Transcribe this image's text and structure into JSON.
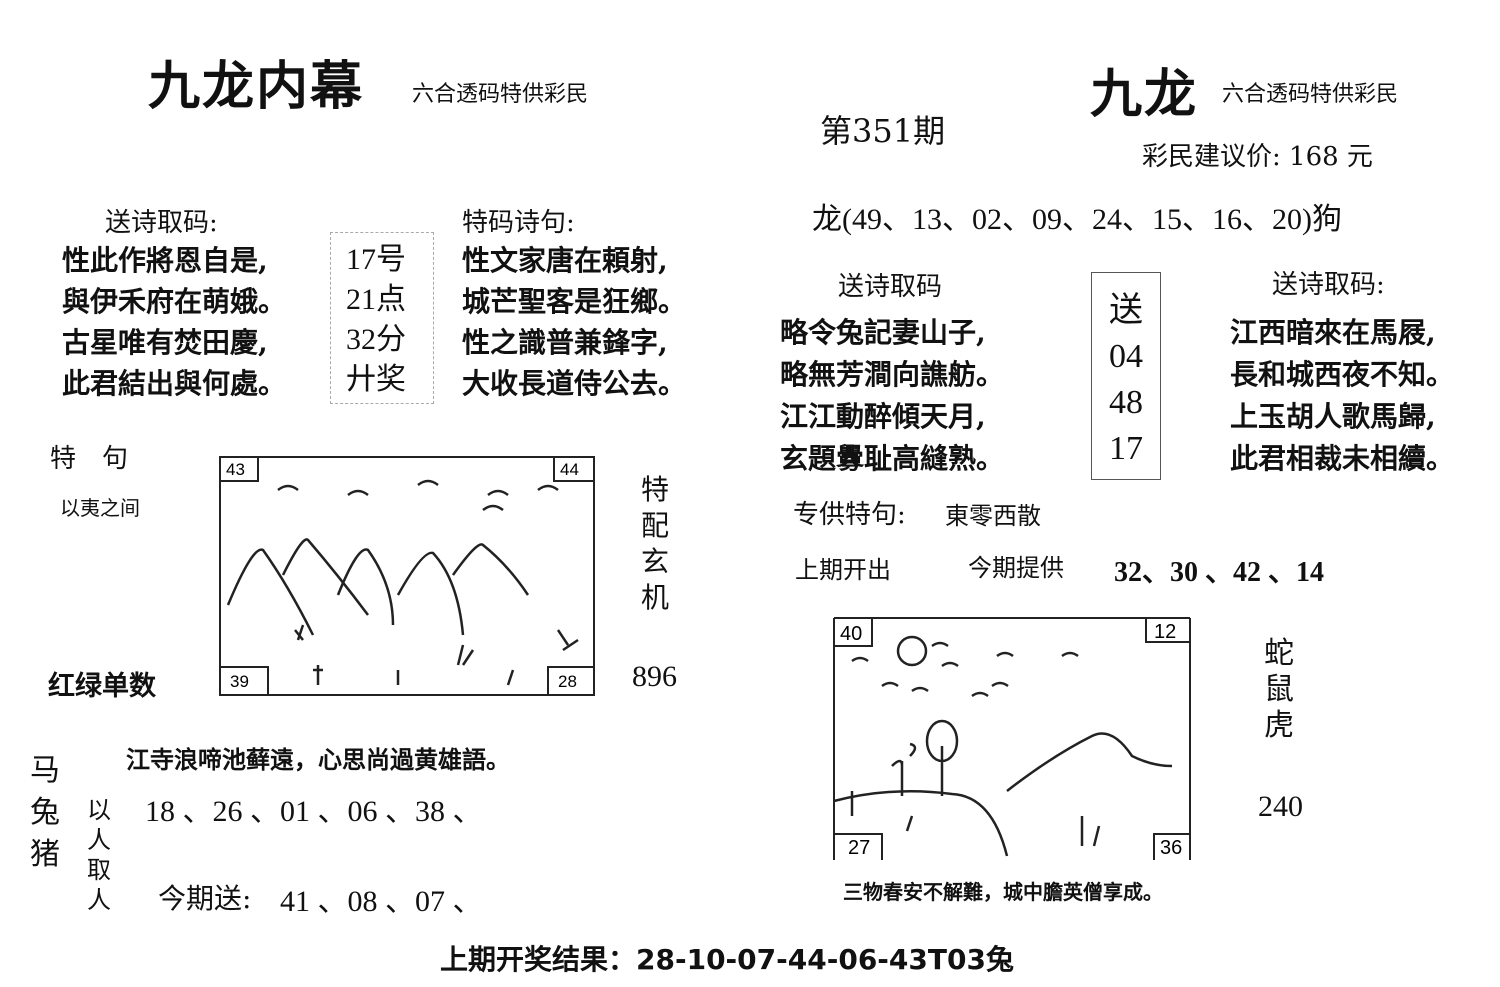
{
  "left": {
    "title": "九龙内幕",
    "subtitle": "六合透码特供彩民",
    "poem1": {
      "heading": "送诗取码:",
      "lines": [
        "性此作將恩自是,",
        "與伊禾府在萌娥。",
        "古星唯有焚田慶,",
        "此君結出與何處。"
      ]
    },
    "center_box": [
      "17号",
      "21点",
      "32分",
      "廾奖"
    ],
    "poem2": {
      "heading": "特码诗句:",
      "lines": [
        "性文家唐在頼射,",
        "城芒聖客是狂鄉。",
        "性之識普兼鋒字,",
        "大收長道侍公去。"
      ]
    },
    "special_label": "特　句",
    "special_text": "以夷之间",
    "red_green": "红绿单数",
    "picture_corners": [
      "43",
      "44",
      "39",
      "28"
    ],
    "side_vertical": [
      "特",
      "配",
      "玄",
      "机"
    ],
    "side_number": "896",
    "verse": "江寺浪啼池藓遠，心思尚過黄雄語。",
    "animals_vertical": [
      "马",
      "兔",
      "猪"
    ],
    "people_vertical": [
      "以",
      "人",
      "取",
      "人"
    ],
    "numbers_line": "18 、26 、01 、06 、38 、",
    "today_label": "今期送:",
    "today_numbers": "41 、08 、07 、"
  },
  "right": {
    "title": "九龙",
    "subtitle": "六合透码特供彩民",
    "issue": "第351期",
    "price": "彩民建议价: 168 元",
    "dragon_line": "龙(49、13、02、09、24、15、16、20)狗",
    "poem1": {
      "heading": "送诗取码",
      "lines": [
        "略令兔記妻山子,",
        "略無芳澗向譙舫。",
        "江江動醉傾天月,",
        "玄題釁耻高縫熟。"
      ]
    },
    "center_box": [
      "送",
      "04",
      "48",
      "17"
    ],
    "poem2": {
      "heading": "送诗取码:",
      "lines": [
        "江西暗來在馬屐,",
        "長和城西夜不知。",
        "上玉胡人歌馬歸,",
        "此君相裁未相續。"
      ]
    },
    "special_label": "专供特句:",
    "special_text": "東零西散",
    "last_issue_label": "上期开出",
    "provide_label": "今期提供",
    "provide_numbers": "32、30 、42 、14",
    "picture_corners": [
      "40",
      "12",
      "27",
      "36"
    ],
    "side_vertical": [
      "蛇",
      "鼠",
      "虎"
    ],
    "side_number": "240",
    "verse": "三物春安不解難，城中膽英僧享成。"
  },
  "footer": {
    "result": "上期开奖结果：28-10-07-44-06-43T03兔"
  }
}
